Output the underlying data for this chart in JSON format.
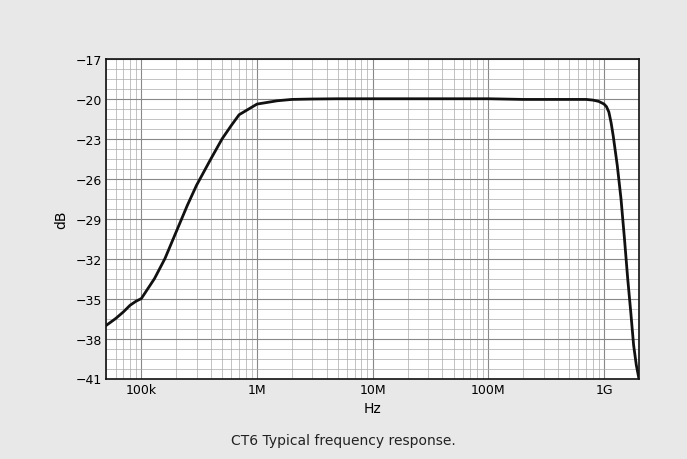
{
  "title": "CT6 Typical frequency response.",
  "xlabel": "Hz",
  "ylabel": "dB",
  "xmin": 50000,
  "xmax": 2000000000,
  "ymin": -41,
  "ymax": -17,
  "yticks": [
    -41,
    -38,
    -35,
    -32,
    -29,
    -26,
    -23,
    -20,
    -17
  ],
  "ytick_labels": [
    "−41",
    "−38",
    "−35",
    "−32",
    "−29",
    "−26",
    "−23",
    "−20",
    "−17"
  ],
  "xtick_labels": [
    "100k",
    "1M",
    "10M",
    "100M",
    "1G"
  ],
  "xtick_values": [
    100000,
    1000000,
    10000000,
    100000000,
    1000000000
  ],
  "line_color": "#111111",
  "line_width": 2.0,
  "background_color": "#e8e8e8",
  "plot_background": "#ffffff",
  "grid_minor_color": "#aaaaaa",
  "grid_major_color": "#888888",
  "curve_freqs": [
    50000,
    60000,
    70000,
    80000,
    90000,
    100000,
    130000,
    160000,
    200000,
    250000,
    300000,
    400000,
    500000,
    600000,
    700000,
    1000000,
    1500000,
    2000000,
    3000000,
    5000000,
    7000000,
    10000000,
    20000000,
    50000000,
    100000000,
    200000000,
    300000000,
    500000000,
    700000000,
    800000000,
    850000000,
    900000000,
    950000000,
    1000000000,
    1050000000,
    1100000000,
    1150000000,
    1200000000,
    1300000000,
    1400000000,
    1500000000,
    1600000000,
    1700000000,
    1800000000,
    1900000000,
    2000000000
  ],
  "curve_dbs": [
    -37.0,
    -36.5,
    -36.0,
    -35.5,
    -35.2,
    -35.0,
    -33.5,
    -32.0,
    -30.0,
    -28.0,
    -26.5,
    -24.5,
    -23.0,
    -22.0,
    -21.2,
    -20.4,
    -20.15,
    -20.05,
    -20.02,
    -20.0,
    -20.0,
    -20.0,
    -20.0,
    -20.0,
    -20.0,
    -20.05,
    -20.05,
    -20.05,
    -20.05,
    -20.1,
    -20.15,
    -20.2,
    -20.3,
    -20.4,
    -20.6,
    -21.0,
    -21.8,
    -22.8,
    -25.0,
    -27.5,
    -30.5,
    -33.5,
    -36.0,
    -38.5,
    -40.0,
    -41.0
  ]
}
